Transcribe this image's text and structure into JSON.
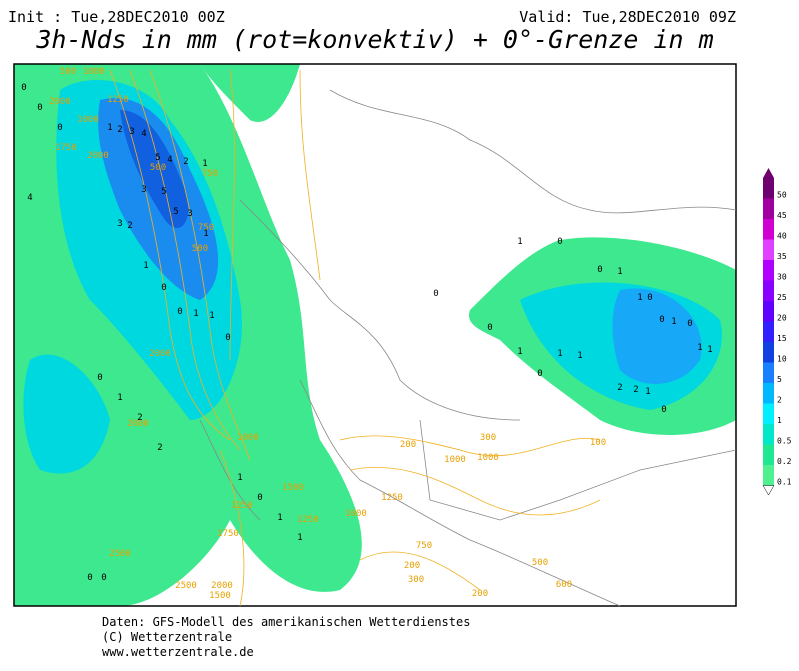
{
  "header": {
    "init": "Init : Tue,28DEC2010 00Z",
    "valid": "Valid: Tue,28DEC2010 09Z",
    "title": "3h-Nds in mm (rot=konvektiv) + 0°-Grenze in m"
  },
  "legend": {
    "levels": [
      50,
      45,
      40,
      35,
      30,
      25,
      20,
      15,
      10,
      5,
      2,
      1,
      0.5,
      0.2,
      0.1
    ],
    "colors": [
      "#6e0070",
      "#a000a0",
      "#d000d0",
      "#e040ff",
      "#b000ff",
      "#8a00ff",
      "#6000ff",
      "#3020ff",
      "#1040e0",
      "#1880ff",
      "#00b8ff",
      "#00f0ff",
      "#00e8c8",
      "#20e890",
      "#50f090"
    ]
  },
  "contour_labels": [
    500,
    1000,
    1250,
    2000,
    1000,
    1750,
    2000,
    500,
    750,
    750,
    500,
    2000,
    2000,
    1000,
    1500,
    1250,
    1000,
    1250,
    1750,
    2500,
    2500,
    2000,
    1500,
    200,
    1000,
    1000,
    300,
    100,
    1250,
    750,
    200,
    300,
    500,
    600,
    200
  ],
  "precip_labels": [
    0,
    0,
    0,
    1,
    2,
    3,
    4,
    5,
    4,
    2,
    1,
    3,
    5,
    5,
    3,
    1,
    4,
    3,
    2,
    1,
    0,
    0,
    1,
    1,
    0,
    0,
    1,
    2,
    2,
    1,
    0,
    1,
    1,
    0,
    0,
    1,
    0,
    0,
    1,
    1,
    0,
    0,
    1,
    0,
    1,
    1,
    2,
    2,
    1,
    0,
    0,
    1,
    0,
    1,
    1,
    0
  ],
  "footer": {
    "line1": "Daten: GFS-Modell des amerikanischen Wetterdienstes",
    "line2": "(C) Wetterzentrale",
    "line3": "www.wetterzentrale.de"
  }
}
